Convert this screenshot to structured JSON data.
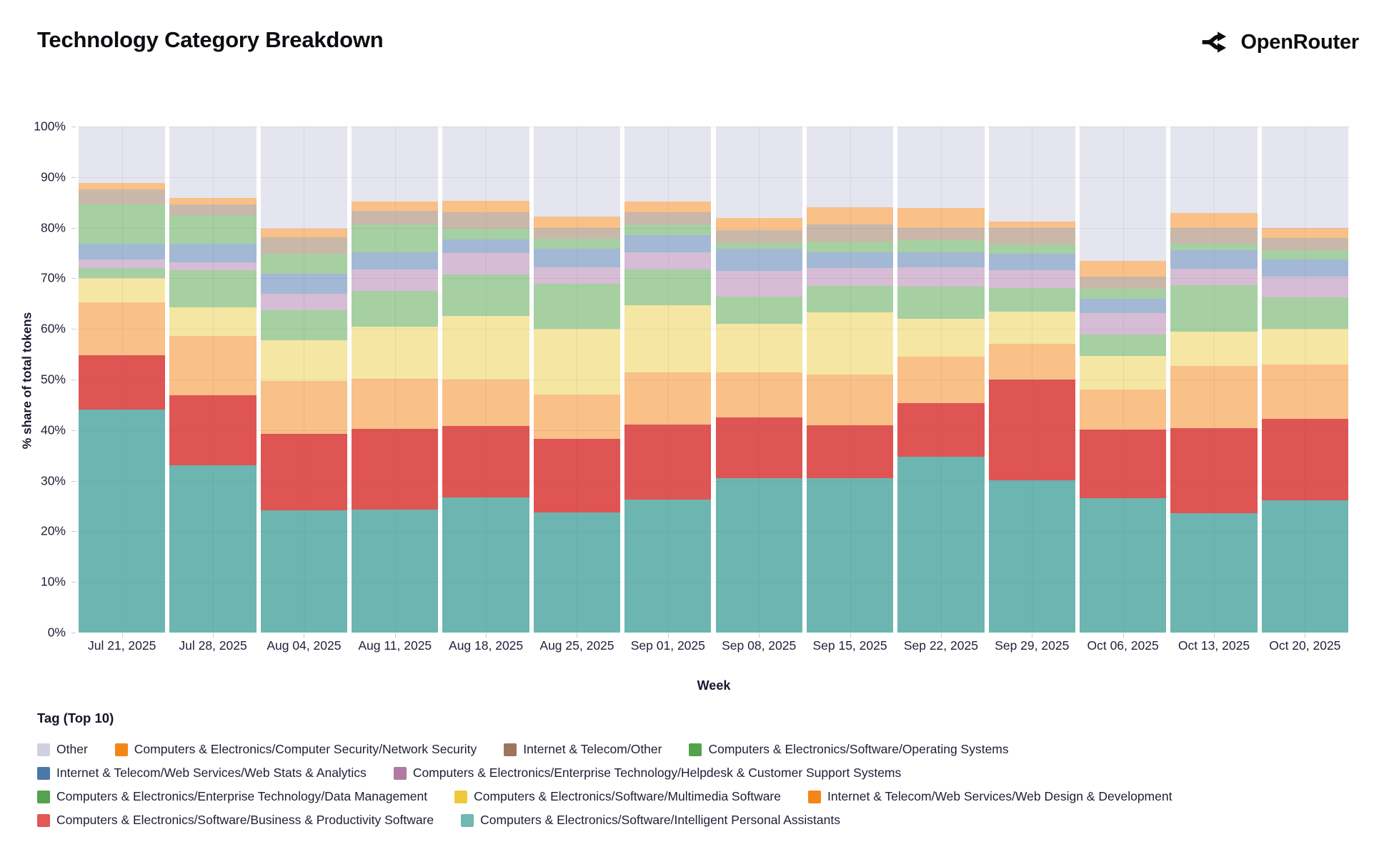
{
  "page": {
    "title": "Technology Category Breakdown",
    "brand": "OpenRouter"
  },
  "chart_data": {
    "type": "bar",
    "stacked": true,
    "title": "Technology Category Breakdown",
    "xlabel": "Week",
    "ylabel": "% share of total tokens",
    "ylim": [
      0,
      100
    ],
    "grid": true,
    "legend_position": "bottom",
    "y_ticks": [
      "0%",
      "10%",
      "20%",
      "30%",
      "40%",
      "50%",
      "60%",
      "70%",
      "80%",
      "90%",
      "100%"
    ],
    "categories": [
      "Jul 21, 2025",
      "Jul 28, 2025",
      "Aug 04, 2025",
      "Aug 11, 2025",
      "Aug 18, 2025",
      "Aug 25, 2025",
      "Sep 01, 2025",
      "Sep 08, 2025",
      "Sep 15, 2025",
      "Sep 22, 2025",
      "Sep 29, 2025",
      "Oct 06, 2025",
      "Oct 13, 2025",
      "Oct 20, 2025"
    ],
    "stack_order_bottom_to_top": [
      "personal_assistants",
      "business_productivity",
      "web_design",
      "multimedia",
      "data_management",
      "helpdesk",
      "web_stats",
      "operating_systems",
      "internet_telecom_other",
      "network_security",
      "other"
    ],
    "series": [
      {
        "id": "other",
        "name": "Other",
        "swatch_color": "#cfd1df",
        "bar_color": "#e5e5ef",
        "values": [
          11.1,
          14.1,
          20.2,
          14.8,
          14.7,
          17.8,
          14.8,
          18.1,
          15.9,
          16.1,
          18.8,
          26.5,
          17.1,
          20.1
        ]
      },
      {
        "id": "network_security",
        "name": "Computers & Electronics/Computer Security/Network Security",
        "swatch_color": "#f58518",
        "bar_color": "#f9c088",
        "values": [
          1.3,
          1.3,
          1.7,
          1.9,
          2.3,
          2.2,
          2.2,
          2.4,
          3.4,
          3.9,
          1.2,
          3.2,
          2.9,
          1.9
        ]
      },
      {
        "id": "internet_telecom_other",
        "name": "Internet & Telecom/Other",
        "swatch_color": "#9d755d",
        "bar_color": "#c9b7aa",
        "values": [
          3.0,
          2.1,
          3.2,
          2.7,
          3.2,
          2.2,
          2.4,
          2.5,
          3.4,
          2.4,
          3.3,
          2.4,
          3.2,
          2.4
        ]
      },
      {
        "id": "operating_systems",
        "name": "Computers & Electronics/Software/Operating Systems",
        "swatch_color": "#54a24b",
        "bar_color": "#a6cfa2",
        "values": [
          7.7,
          5.6,
          4.0,
          5.4,
          2.1,
          2.0,
          2.1,
          1.1,
          2.2,
          2.4,
          1.8,
          2.0,
          1.2,
          1.9
        ]
      },
      {
        "id": "web_stats",
        "name": "Internet & Telecom/Web Services/Web Stats & Analytics",
        "swatch_color": "#4c78a8",
        "bar_color": "#a3b8d4",
        "values": [
          3.2,
          3.8,
          3.9,
          3.4,
          2.7,
          3.6,
          3.3,
          4.4,
          3.0,
          3.0,
          3.3,
          2.7,
          3.7,
          3.4
        ]
      },
      {
        "id": "helpdesk",
        "name": "Computers & Electronics/Enterprise Technology/Helpdesk & Customer Support Systems",
        "swatch_color": "#b07aa2",
        "bar_color": "#d6bcd5",
        "values": [
          1.6,
          1.5,
          3.3,
          4.3,
          4.3,
          3.3,
          3.5,
          5.1,
          3.6,
          3.9,
          3.5,
          4.3,
          3.2,
          4.0
        ]
      },
      {
        "id": "data_management",
        "name": "Computers & Electronics/Enterprise Technology/Data Management",
        "swatch_color": "#54a24b",
        "bar_color": "#a6cfa2",
        "values": [
          2.1,
          7.4,
          5.9,
          7.0,
          8.1,
          8.8,
          7.0,
          5.4,
          5.2,
          6.3,
          4.7,
          4.2,
          9.3,
          6.3
        ]
      },
      {
        "id": "multimedia",
        "name": "Computers & Electronics/Software/Multimedia Software",
        "swatch_color": "#eeca3b",
        "bar_color": "#f5e6a3",
        "values": [
          4.8,
          5.6,
          8.1,
          10.3,
          12.6,
          13.1,
          13.3,
          9.6,
          12.3,
          7.5,
          6.3,
          6.7,
          6.7,
          7.1
        ]
      },
      {
        "id": "web_design",
        "name": "Internet & Telecom/Web Services/Web Design & Development",
        "swatch_color": "#f58518",
        "bar_color": "#f9c088",
        "values": [
          10.4,
          11.7,
          10.4,
          9.9,
          9.2,
          8.7,
          10.3,
          8.9,
          10.0,
          9.2,
          7.1,
          7.9,
          12.3,
          10.6
        ]
      },
      {
        "id": "business_productivity",
        "name": "Computers & Electronics/Software/Business & Productivity Software",
        "swatch_color": "#e45756",
        "bar_color": "#de5553",
        "values": [
          10.8,
          13.9,
          15.1,
          16.0,
          14.1,
          14.5,
          14.8,
          12.0,
          10.5,
          10.6,
          19.9,
          13.6,
          16.8,
          16.1
        ]
      },
      {
        "id": "personal_assistants",
        "name": "Computers & Electronics/Software/Intelligent Personal Assistants",
        "swatch_color": "#72b7b2",
        "bar_color": "#6db5b1",
        "values": [
          44.0,
          33.0,
          24.2,
          24.3,
          26.7,
          23.8,
          26.3,
          30.5,
          30.5,
          34.7,
          30.1,
          26.5,
          23.6,
          26.2
        ]
      }
    ],
    "legend": {
      "title": "Tag (Top 10)",
      "rows": [
        [
          "other",
          "network_security",
          "internet_telecom_other",
          "operating_systems"
        ],
        [
          "web_stats",
          "helpdesk"
        ],
        [
          "data_management",
          "multimedia",
          "web_design"
        ],
        [
          "business_productivity",
          "personal_assistants"
        ]
      ]
    }
  }
}
